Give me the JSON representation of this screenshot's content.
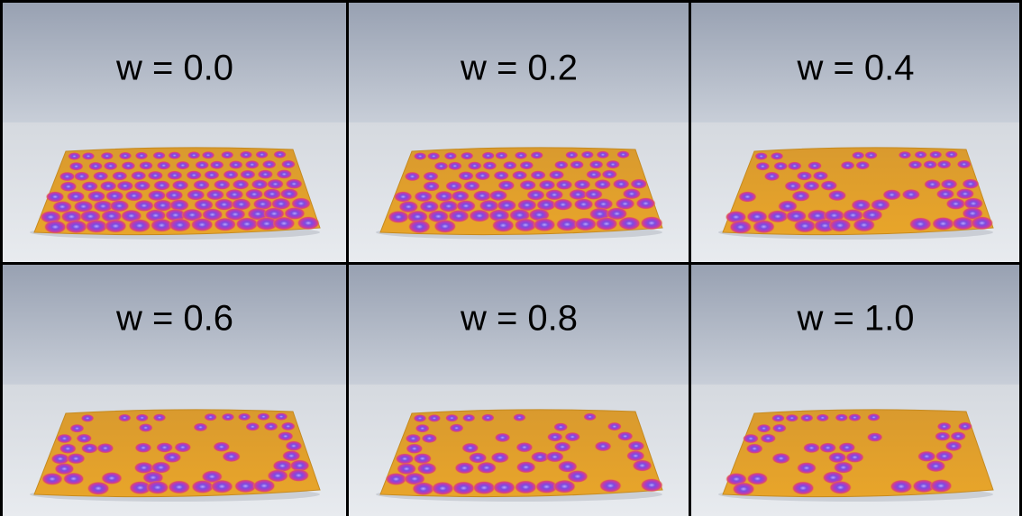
{
  "panels": [
    {
      "label": "w = 0.0"
    },
    {
      "label": "w = 0.2"
    },
    {
      "label": "w = 0.4"
    },
    {
      "label": "w = 0.6"
    },
    {
      "label": "w = 0.8"
    },
    {
      "label": "w = 1.0"
    }
  ]
}
